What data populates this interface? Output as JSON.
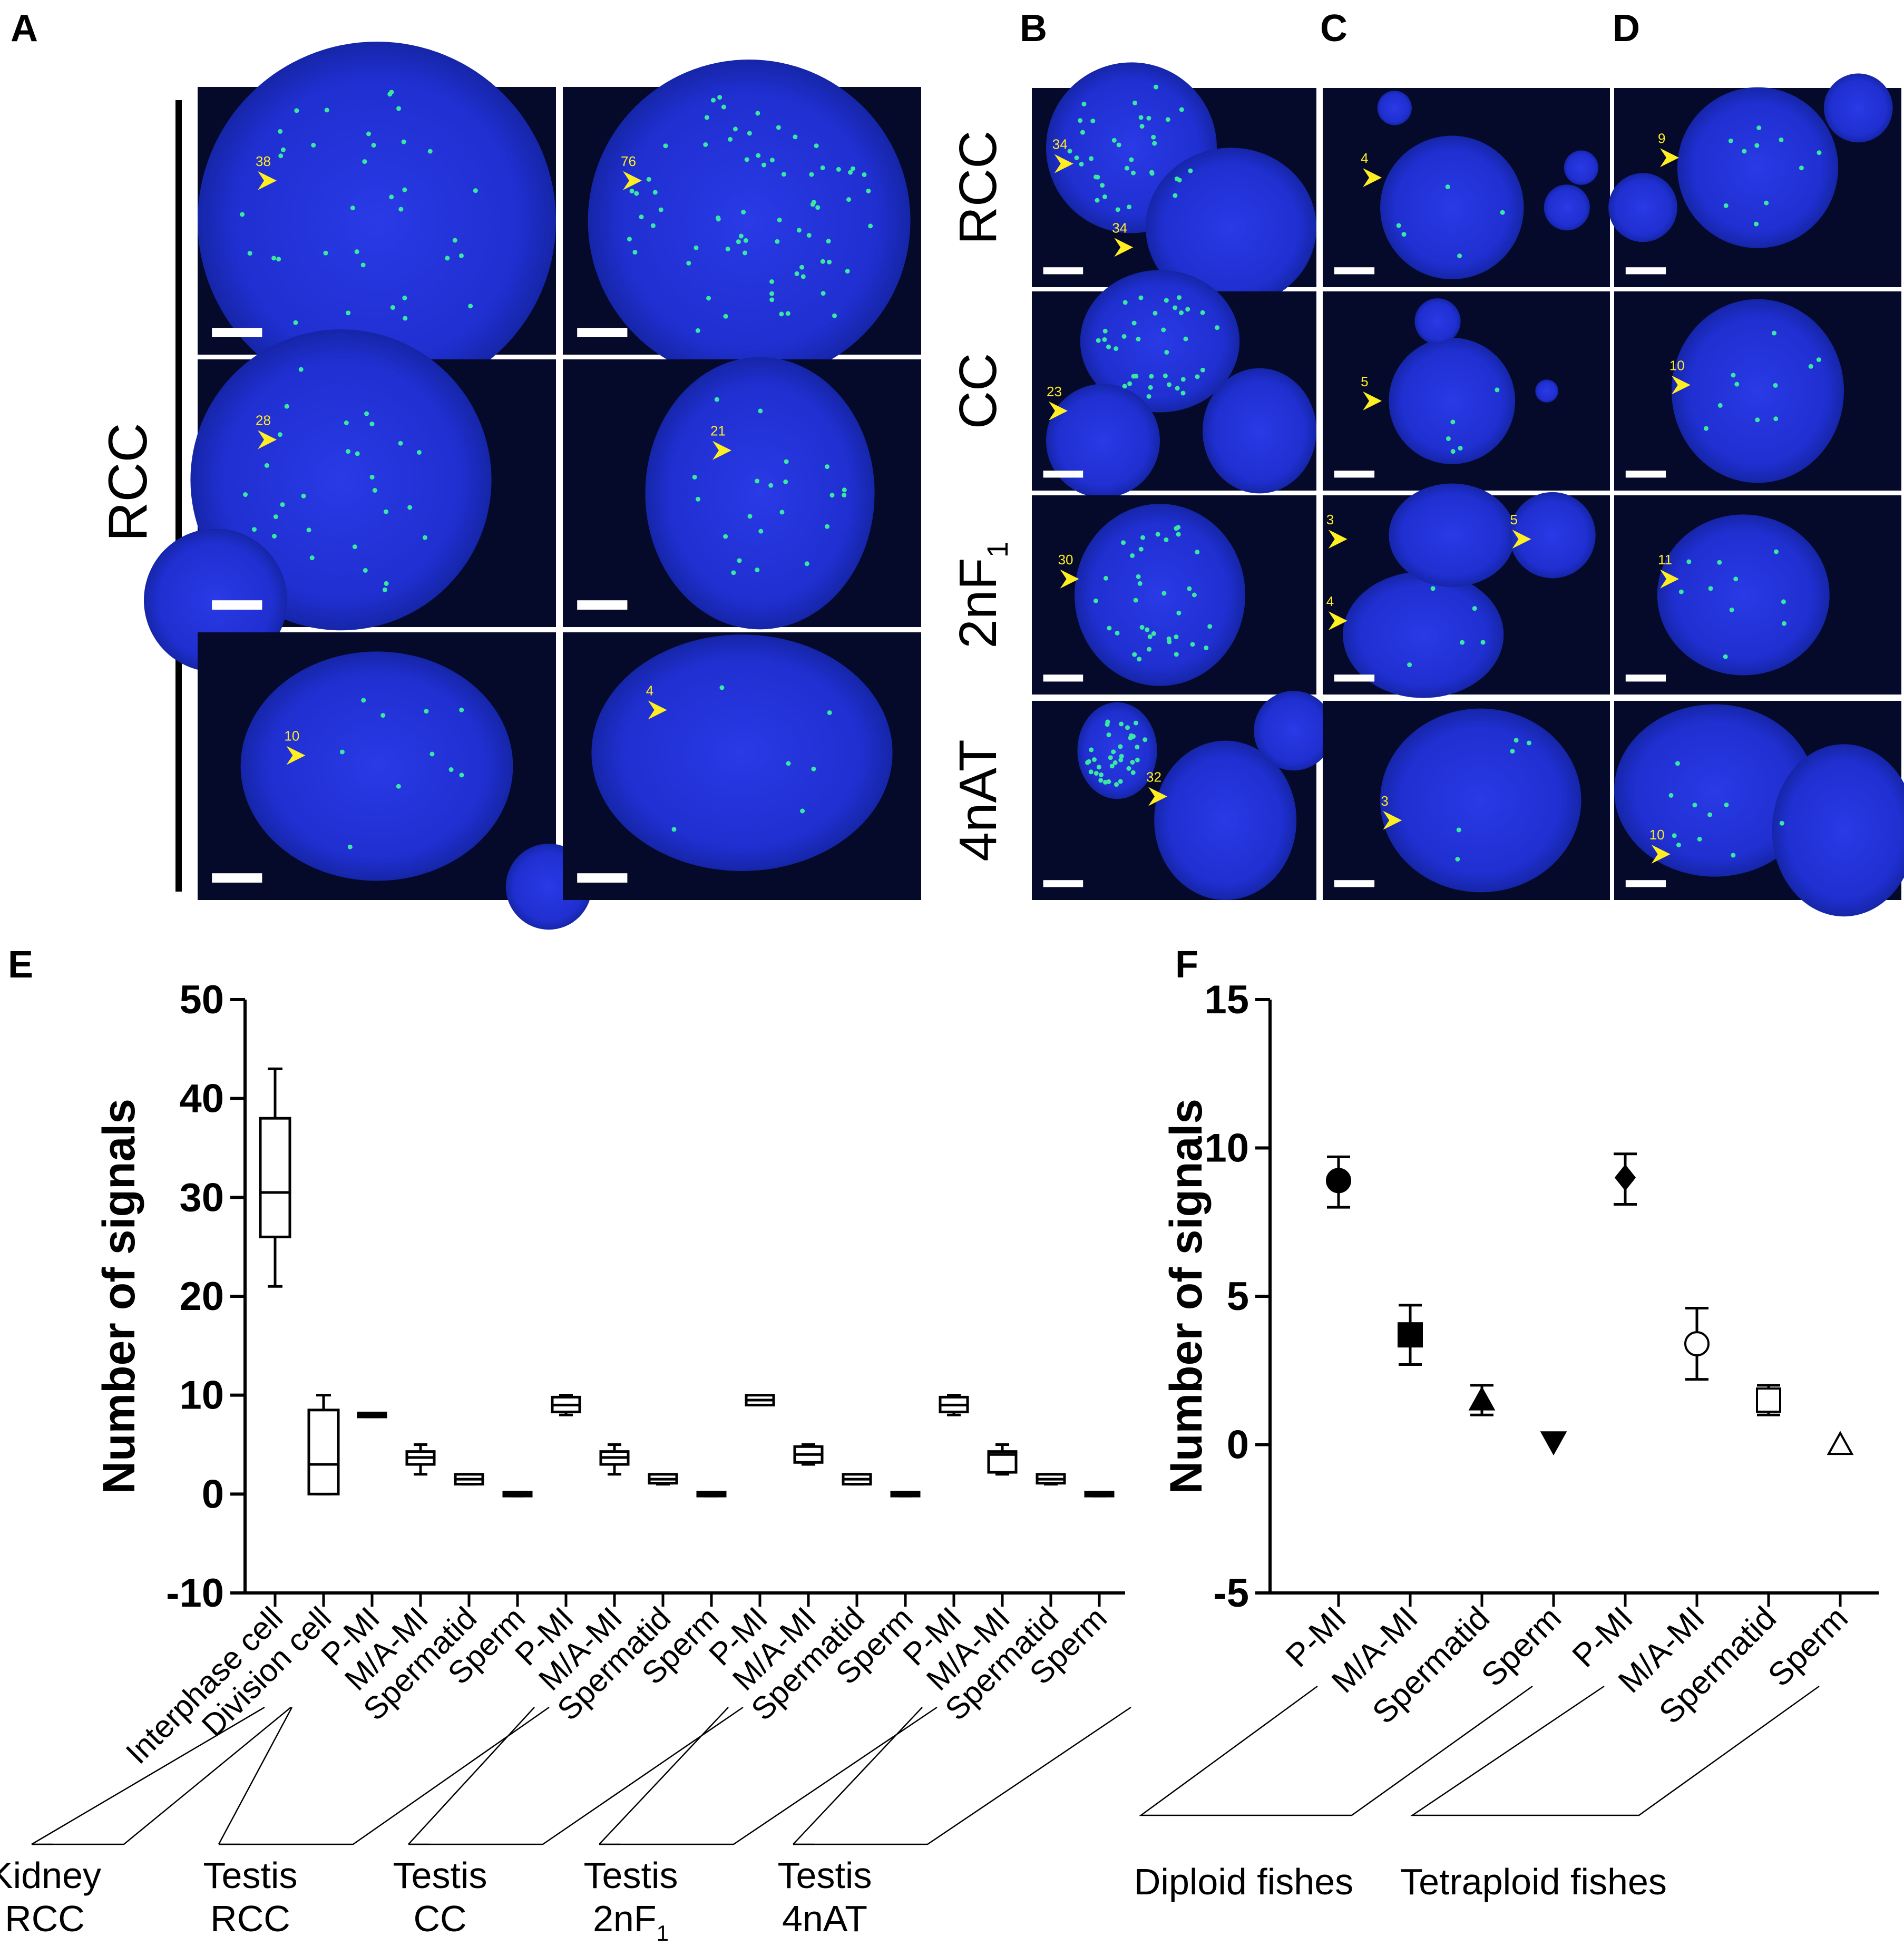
{
  "panel_letters": [
    "A",
    "B",
    "C",
    "D",
    "E",
    "F"
  ],
  "panel_A": {
    "row_label": "RCC",
    "counts": [
      "38",
      "76",
      "28",
      "21",
      "10",
      "4"
    ],
    "colors": {
      "background": "#05092a",
      "nucleus": "#1f2fd6",
      "signal": "#39e9a2",
      "arrow": "#ffee22"
    }
  },
  "panels_BCD": {
    "row_labels": [
      "RCC",
      "CC",
      "2nF",
      "4nAT"
    ],
    "row_label_subscripts": [
      "",
      "",
      "1",
      ""
    ],
    "B_counts": [
      [
        "34",
        "34"
      ],
      [
        "23"
      ],
      [
        "30"
      ],
      [
        "32"
      ]
    ],
    "C_counts": [
      [
        "4"
      ],
      [
        "5"
      ],
      [
        "3",
        "5",
        "4"
      ],
      [
        "3"
      ]
    ],
    "D_counts": [
      [
        "9"
      ],
      [
        "10"
      ],
      [
        "11"
      ],
      [
        "10"
      ]
    ]
  },
  "chart_data": [
    {
      "panel": "E",
      "type": "box",
      "ylabel": "Number of signals",
      "ylim": [
        -10,
        50
      ],
      "yticks": [
        "-10",
        "0",
        "10",
        "20",
        "30",
        "40",
        "50"
      ],
      "categories": [
        "Interphase cell",
        "Division cell",
        "P-MI",
        "M/A-MI",
        "Spermatid",
        "Sperm",
        "P-MI",
        "M/A-MI",
        "Spermatid",
        "Sperm",
        "P-MI",
        "M/A-MI",
        "Spermatid",
        "Sperm",
        "P-MI",
        "M/A-MI",
        "Spermatid",
        "Sperm"
      ],
      "boxes": [
        {
          "min": 21,
          "q1": 26,
          "median": 30.5,
          "q3": 38,
          "max": 43
        },
        {
          "min": 0,
          "q1": 0,
          "median": 3,
          "q3": 8.5,
          "max": 10
        },
        {
          "min": 7.8,
          "q1": 7.8,
          "median": 8,
          "q3": 8.2,
          "max": 8.2
        },
        {
          "min": 2,
          "q1": 3,
          "median": 3.7,
          "q3": 4.3,
          "max": 5
        },
        {
          "min": 1,
          "q1": 1,
          "median": 1.5,
          "q3": 2,
          "max": 2
        },
        {
          "min": -0.2,
          "q1": -0.2,
          "median": 0,
          "q3": 0.2,
          "max": 0.2
        },
        {
          "min": 8,
          "q1": 8.3,
          "median": 9,
          "q3": 9.8,
          "max": 10
        },
        {
          "min": 2,
          "q1": 3,
          "median": 3.7,
          "q3": 4.3,
          "max": 5
        },
        {
          "min": 1,
          "q1": 1.1,
          "median": 1.5,
          "q3": 2,
          "max": 2
        },
        {
          "min": -0.2,
          "q1": -0.2,
          "median": 0,
          "q3": 0.2,
          "max": 0.2
        },
        {
          "min": 9,
          "q1": 9,
          "median": 9.5,
          "q3": 10,
          "max": 10
        },
        {
          "min": 3,
          "q1": 3.2,
          "median": 4,
          "q3": 4.8,
          "max": 5
        },
        {
          "min": 1,
          "q1": 1,
          "median": 1.5,
          "q3": 2,
          "max": 2
        },
        {
          "min": -0.2,
          "q1": -0.2,
          "median": 0,
          "q3": 0.2,
          "max": 0.2
        },
        {
          "min": 8,
          "q1": 8.3,
          "median": 9,
          "q3": 9.8,
          "max": 10
        },
        {
          "min": 2,
          "q1": 2.2,
          "median": 4,
          "q3": 4.3,
          "max": 5
        },
        {
          "min": 1,
          "q1": 1.1,
          "median": 1.5,
          "q3": 2,
          "max": 2
        },
        {
          "min": -0.2,
          "q1": -0.2,
          "median": 0,
          "q3": 0.2,
          "max": 0.2
        }
      ],
      "groups": [
        {
          "line1": "Kidney",
          "line2": "RCC",
          "sub2": "",
          "start": 0,
          "end": 0
        },
        {
          "line1": "Testis",
          "line2": "RCC",
          "sub2": "",
          "start": 1,
          "end": 5
        },
        {
          "line1": "Testis",
          "line2": "CC",
          "sub2": "",
          "start": 6,
          "end": 9
        },
        {
          "line1": "Testis",
          "line2": "2nF",
          "sub2": "1",
          "start": 10,
          "end": 13
        },
        {
          "line1": "Testis",
          "line2": "4nAT",
          "sub2": "",
          "start": 14,
          "end": 17
        }
      ]
    },
    {
      "panel": "F",
      "type": "scatter",
      "ylabel": "Number of signals",
      "ylim": [
        -5,
        15
      ],
      "yticks": [
        "-5",
        "0",
        "5",
        "10",
        "15"
      ],
      "categories": [
        "P-MI",
        "M/A-MI",
        "Spermatid",
        "Sperm",
        "P-MI",
        "M/A-MI",
        "Spermatid",
        "Sperm"
      ],
      "points": [
        {
          "mean": 8.9,
          "low": 8.0,
          "high": 9.7,
          "marker": "circle",
          "filled": true
        },
        {
          "mean": 3.7,
          "low": 2.7,
          "high": 4.7,
          "marker": "square",
          "filled": true
        },
        {
          "mean": 1.5,
          "low": 1.0,
          "high": 2.0,
          "marker": "triangle-up",
          "filled": true
        },
        {
          "mean": 0.1,
          "low": 0.1,
          "high": 0.1,
          "marker": "triangle-down",
          "filled": true
        },
        {
          "mean": 9.0,
          "low": 8.1,
          "high": 9.8,
          "marker": "diamond",
          "filled": true
        },
        {
          "mean": 3.4,
          "low": 2.2,
          "high": 4.6,
          "marker": "circle",
          "filled": false
        },
        {
          "mean": 1.5,
          "low": 1.0,
          "high": 2.0,
          "marker": "square",
          "filled": false
        },
        {
          "mean": 0.0,
          "low": 0.0,
          "high": 0.0,
          "marker": "triangle-up",
          "filled": false
        }
      ],
      "groups": [
        {
          "label": "Diploid fishes",
          "start": 0,
          "end": 3
        },
        {
          "label": "Tetraploid fishes",
          "start": 4,
          "end": 7
        }
      ]
    }
  ]
}
